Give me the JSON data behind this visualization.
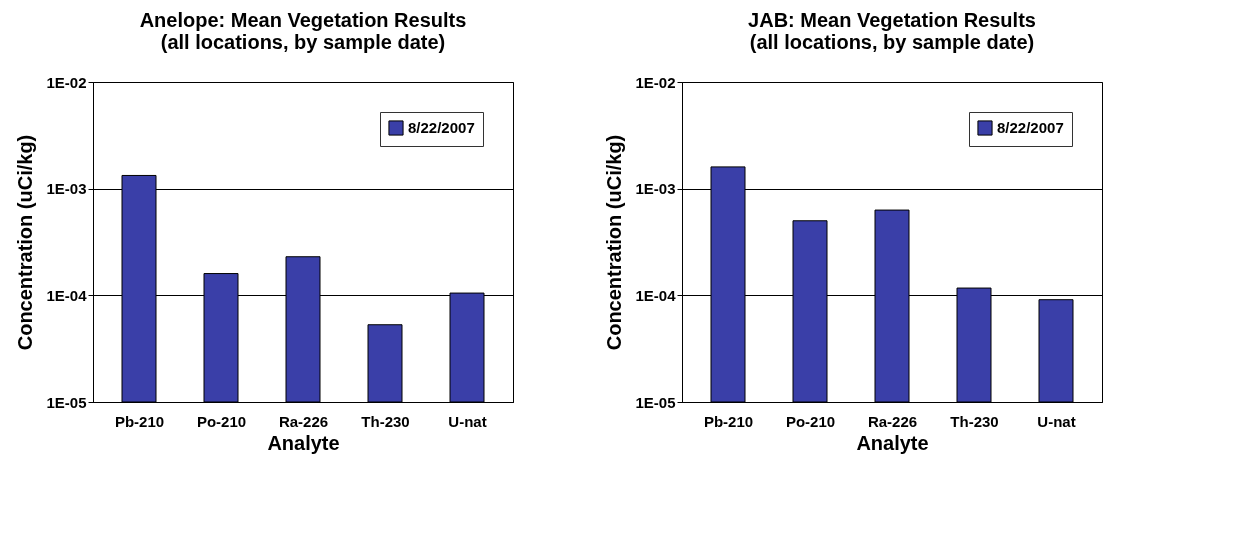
{
  "chart_data": [
    {
      "type": "bar",
      "title": "Anelope: Mean Vegetation Results\n(all locations, by sample date)",
      "xlabel": "Analyte",
      "ylabel": "Concentration (uCi/kg)",
      "categories": [
        "Pb-210",
        "Po-210",
        "Ra-226",
        "Th-230",
        "U-nat"
      ],
      "series": [
        {
          "name": "8/22/2007",
          "color": "#3a3fa8",
          "values": [
            0.00133,
            0.00016,
            0.00023,
            5.3e-05,
            0.000105
          ]
        }
      ],
      "log": true,
      "ylim": [
        1e-05,
        0.01
      ],
      "yticks": [
        {
          "value": 1e-05,
          "label": "1E-05"
        },
        {
          "value": 0.0001,
          "label": "1E-04"
        },
        {
          "value": 0.001,
          "label": "1E-03"
        },
        {
          "value": 0.01,
          "label": "1E-02"
        }
      ],
      "grid": "y",
      "legend": "top right"
    },
    {
      "type": "bar",
      "title": "JAB: Mean Vegetation Results\n(all locations, by sample date)",
      "xlabel": "Analyte",
      "ylabel": "Concentration (uCi/kg)",
      "categories": [
        "Pb-210",
        "Po-210",
        "Ra-226",
        "Th-230",
        "U-nat"
      ],
      "series": [
        {
          "name": "8/22/2007",
          "color": "#3a3fa8",
          "values": [
            0.0016,
            0.0005,
            0.00063,
            0.000117,
            9.1e-05
          ]
        }
      ],
      "log": true,
      "ylim": [
        1e-05,
        0.01
      ],
      "yticks": [
        {
          "value": 1e-05,
          "label": "1E-05"
        },
        {
          "value": 0.0001,
          "label": "1E-04"
        },
        {
          "value": 0.001,
          "label": "1E-03"
        },
        {
          "value": 0.01,
          "label": "1E-02"
        }
      ],
      "grid": "y",
      "legend": "top right"
    }
  ]
}
